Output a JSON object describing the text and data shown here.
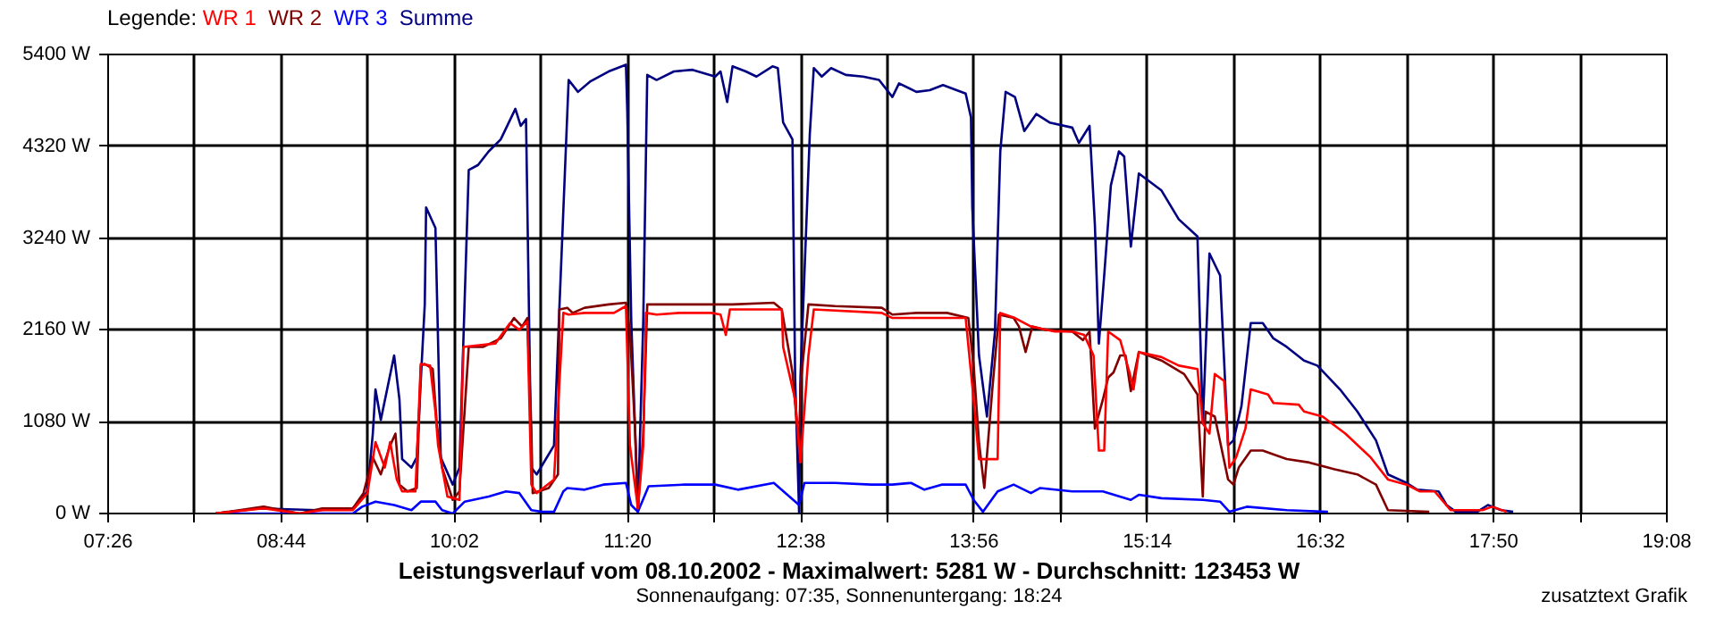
{
  "chart_data": {
    "type": "line",
    "title": "Leistungsverlauf vom 08.10.2002 - Maximalwert: 5281 W - Durchschnitt: 123453 W",
    "subtitle": "Sonnenaufgang: 07:35, Sonnenuntergang: 18:24",
    "annotations": [
      "zusatztext Grafik"
    ],
    "legend_title": "Legende:",
    "legend": "top left",
    "grid": true,
    "line_style": "solid",
    "xlim": [
      7.4333,
      19.1333
    ],
    "xticks": [
      {
        "value": 7.4333,
        "label": "07:26"
      },
      {
        "value": 8.0833,
        "label": null
      },
      {
        "value": 8.7333,
        "label": "08:44"
      },
      {
        "value": 9.3833,
        "label": null
      },
      {
        "value": 10.0333,
        "label": "10:02"
      },
      {
        "value": 10.6833,
        "label": null
      },
      {
        "value": 11.3333,
        "label": "11:20"
      },
      {
        "value": 11.9833,
        "label": null
      },
      {
        "value": 12.6333,
        "label": "12:38"
      },
      {
        "value": 13.2833,
        "label": null
      },
      {
        "value": 13.9333,
        "label": "13:56"
      },
      {
        "value": 14.5833,
        "label": null
      },
      {
        "value": 15.2333,
        "label": "15:14"
      },
      {
        "value": 15.8833,
        "label": null
      },
      {
        "value": 16.5333,
        "label": "16:32"
      },
      {
        "value": 17.1833,
        "label": null
      },
      {
        "value": 17.8333,
        "label": "17:50"
      },
      {
        "value": 18.4833,
        "label": null
      },
      {
        "value": 19.1333,
        "label": "19:08"
      }
    ],
    "ylim": [
      0,
      5400
    ],
    "yticks": [
      {
        "value": 0,
        "label": "0 W"
      },
      {
        "value": 1080,
        "label": "1080 W"
      },
      {
        "value": 2160,
        "label": "2160 W"
      },
      {
        "value": 3240,
        "label": "3240 W"
      },
      {
        "value": 4320,
        "label": "4320 W"
      },
      {
        "value": 5400,
        "label": "5400 W"
      }
    ],
    "series": [
      {
        "name": "WR 1",
        "color": "#ff0000",
        "x": [
          8.24,
          8.6,
          8.87,
          9.04,
          9.27,
          9.38,
          9.44,
          9.51,
          9.55,
          9.6,
          9.64,
          9.74,
          9.78,
          9.85,
          9.89,
          9.91,
          9.98,
          10.07,
          10.1,
          10.34,
          10.45,
          10.52,
          10.58,
          10.61,
          10.65,
          10.78,
          10.85,
          10.89,
          11.01,
          11.23,
          11.32,
          11.35,
          11.41,
          11.45,
          11.47,
          11.55,
          11.72,
          11.96,
          12.03,
          12.07,
          12.1,
          12.43,
          12.49,
          12.5,
          12.59,
          12.63,
          12.69,
          12.73,
          13.24,
          13.32,
          13.6,
          13.87,
          13.93,
          13.97,
          14.11,
          14.13,
          14.24,
          14.36,
          14.54,
          14.67,
          14.76,
          14.83,
          14.87,
          14.91,
          14.94,
          15.03,
          15.1,
          15.13,
          15.17,
          15.34,
          15.47,
          15.61,
          15.65,
          15.7,
          15.74,
          15.81,
          15.85,
          15.9,
          15.97,
          16.01,
          16.14,
          16.18,
          16.37,
          16.41,
          16.55,
          16.72,
          16.91,
          17.04,
          17.18,
          17.28,
          17.39,
          17.51,
          17.75,
          17.82,
          17.93
        ],
        "values": [
          0,
          60,
          0,
          40,
          40,
          240,
          840,
          540,
          840,
          400,
          260,
          260,
          1760,
          1740,
          1200,
          800,
          200,
          160,
          1960,
          2000,
          2240,
          2160,
          2260,
          340,
          240,
          400,
          2360,
          2340,
          2360,
          2360,
          2440,
          800,
          60,
          800,
          2360,
          2340,
          2360,
          2360,
          2340,
          2100,
          2400,
          2400,
          2400,
          1960,
          1340,
          600,
          1860,
          2400,
          2360,
          2300,
          2300,
          2300,
          1340,
          640,
          640,
          2360,
          2300,
          2200,
          2140,
          2140,
          2100,
          1860,
          740,
          740,
          2140,
          2040,
          1660,
          1460,
          1900,
          1840,
          1740,
          1700,
          1060,
          940,
          1640,
          1560,
          540,
          660,
          1000,
          1460,
          1400,
          1300,
          1280,
          1200,
          1140,
          940,
          660,
          400,
          340,
          260,
          260,
          40,
          40,
          80,
          20
        ]
      },
      {
        "name": "WR 2",
        "color": "#800000",
        "x": [
          8.24,
          8.6,
          8.87,
          9.04,
          9.27,
          9.35,
          9.42,
          9.48,
          9.55,
          9.59,
          9.62,
          9.68,
          9.75,
          9.78,
          9.81,
          9.87,
          9.9,
          9.94,
          10.02,
          10.07,
          10.14,
          10.25,
          10.38,
          10.48,
          10.54,
          10.58,
          10.61,
          10.62,
          10.74,
          10.81,
          10.82,
          10.88,
          10.92,
          11.01,
          11.19,
          11.32,
          11.35,
          11.39,
          11.41,
          11.45,
          11.48,
          11.68,
          11.99,
          12.12,
          12.43,
          12.49,
          12.57,
          12.62,
          12.63,
          12.69,
          12.89,
          13.24,
          13.32,
          13.5,
          13.73,
          13.89,
          13.93,
          13.97,
          14.01,
          14.07,
          14.12,
          14.23,
          14.27,
          14.32,
          14.37,
          14.47,
          14.67,
          14.75,
          14.8,
          14.84,
          14.9,
          14.94,
          14.98,
          15.03,
          15.07,
          15.11,
          15.17,
          15.34,
          15.51,
          15.61,
          15.65,
          15.67,
          15.74,
          15.84,
          15.88,
          15.92,
          16.01,
          16.1,
          16.28,
          16.45,
          16.64,
          16.81,
          16.95,
          17.04,
          17.35
        ],
        "values": [
          0,
          80,
          0,
          60,
          60,
          240,
          660,
          460,
          800,
          940,
          340,
          260,
          300,
          1740,
          1760,
          1700,
          1060,
          540,
          160,
          260,
          1960,
          1960,
          2060,
          2300,
          2200,
          2300,
          1000,
          240,
          300,
          460,
          2400,
          2420,
          2360,
          2420,
          2460,
          2480,
          2140,
          940,
          60,
          940,
          2460,
          2460,
          2460,
          2460,
          2480,
          2400,
          1660,
          740,
          1500,
          2460,
          2440,
          2420,
          2340,
          2360,
          2360,
          2300,
          1740,
          840,
          300,
          1460,
          2340,
          2300,
          2200,
          1900,
          2200,
          2160,
          2140,
          2040,
          2140,
          1000,
          1340,
          1600,
          1660,
          1860,
          1860,
          1440,
          1900,
          1800,
          1640,
          1400,
          200,
          1200,
          1140,
          400,
          340,
          540,
          740,
          740,
          640,
          600,
          520,
          460,
          340,
          40,
          20
        ]
      },
      {
        "name": "WR 3",
        "color": "#0000ff",
        "x": [
          8.24,
          9.27,
          9.34,
          9.44,
          9.58,
          9.71,
          9.78,
          9.89,
          9.94,
          10.02,
          10.11,
          10.29,
          10.42,
          10.52,
          10.61,
          10.69,
          10.78,
          10.85,
          10.88,
          11.01,
          11.15,
          11.32,
          11.36,
          11.41,
          11.49,
          11.76,
          11.99,
          12.16,
          12.43,
          12.62,
          12.66,
          12.89,
          13.16,
          13.32,
          13.46,
          13.56,
          13.69,
          13.87,
          13.93,
          14.0,
          14.11,
          14.23,
          14.36,
          14.43,
          14.67,
          14.9,
          15.11,
          15.17,
          15.34,
          15.65,
          15.78,
          15.85,
          15.98,
          16.28,
          16.59
        ],
        "values": [
          0,
          0,
          80,
          140,
          100,
          40,
          140,
          140,
          40,
          0,
          140,
          200,
          260,
          240,
          40,
          20,
          20,
          260,
          300,
          280,
          340,
          360,
          100,
          20,
          320,
          340,
          340,
          280,
          360,
          100,
          360,
          360,
          340,
          340,
          360,
          280,
          340,
          340,
          160,
          20,
          260,
          340,
          240,
          300,
          260,
          260,
          160,
          220,
          180,
          160,
          140,
          20,
          80,
          40,
          20
        ]
      },
      {
        "name": "Summe",
        "color": "#000080",
        "x": [
          8.24,
          8.57,
          9.0,
          9.27,
          9.38,
          9.42,
          9.44,
          9.48,
          9.58,
          9.62,
          9.64,
          9.71,
          9.75,
          9.81,
          9.82,
          9.89,
          9.93,
          10.02,
          10.07,
          10.14,
          10.21,
          10.29,
          10.38,
          10.49,
          10.53,
          10.57,
          10.61,
          10.65,
          10.78,
          10.82,
          10.89,
          10.96,
          11.05,
          11.19,
          11.32,
          11.33,
          11.36,
          11.41,
          11.45,
          11.48,
          11.55,
          11.68,
          11.82,
          11.99,
          12.03,
          12.08,
          12.12,
          12.22,
          12.3,
          12.42,
          12.46,
          12.5,
          12.57,
          12.59,
          12.62,
          12.63,
          12.7,
          12.73,
          12.79,
          12.86,
          12.97,
          13.1,
          13.22,
          13.32,
          13.37,
          13.5,
          13.6,
          13.7,
          13.87,
          13.91,
          13.92,
          13.97,
          14.03,
          14.09,
          14.13,
          14.17,
          14.24,
          14.31,
          14.4,
          14.5,
          14.67,
          14.72,
          14.8,
          14.84,
          14.87,
          14.91,
          14.96,
          15.02,
          15.06,
          15.11,
          15.17,
          15.34,
          15.47,
          15.61,
          15.65,
          15.7,
          15.78,
          15.84,
          15.88,
          15.94,
          16.01,
          16.1,
          16.18,
          16.28,
          16.41,
          16.51,
          16.68,
          16.81,
          16.95,
          17.04,
          17.18,
          17.26,
          17.42,
          17.48,
          17.55,
          17.71,
          17.79,
          17.89,
          17.98
        ],
        "values": [
          0,
          60,
          40,
          60,
          260,
          940,
          1460,
          1100,
          1860,
          1340,
          640,
          540,
          660,
          2460,
          3600,
          3360,
          660,
          340,
          540,
          4040,
          4100,
          4260,
          4400,
          4760,
          4560,
          4640,
          540,
          460,
          800,
          2400,
          5100,
          4960,
          5080,
          5200,
          5280,
          4740,
          2260,
          20,
          2260,
          5160,
          5100,
          5200,
          5220,
          5140,
          5200,
          4840,
          5260,
          5200,
          5140,
          5260,
          5240,
          4600,
          4400,
          1600,
          0,
          1600,
          4460,
          5240,
          5140,
          5240,
          5160,
          5140,
          5100,
          4900,
          5060,
          4960,
          4980,
          5040,
          4940,
          4660,
          3600,
          1860,
          1140,
          2140,
          4260,
          4960,
          4900,
          4500,
          4700,
          4600,
          4540,
          4360,
          4560,
          3400,
          2000,
          2800,
          3860,
          4260,
          4200,
          3140,
          4000,
          3800,
          3460,
          3260,
          1060,
          3060,
          2800,
          800,
          860,
          1260,
          2240,
          2240,
          2060,
          1960,
          1800,
          1740,
          1460,
          1200,
          860,
          460,
          360,
          280,
          260,
          100,
          20,
          20,
          100,
          40,
          20
        ]
      }
    ]
  }
}
